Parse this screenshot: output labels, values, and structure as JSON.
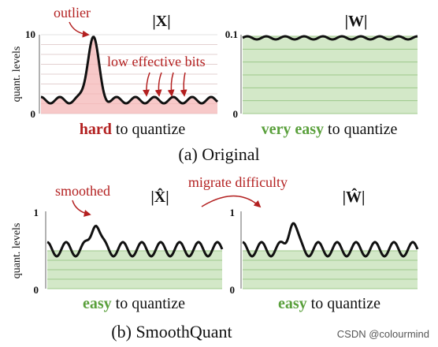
{
  "top": {
    "caption": "(a) Original",
    "y_axis_label": "quant. levels",
    "left": {
      "title": "|X|",
      "y_top_tick": "10",
      "y_bottom_tick": "0",
      "note_outlier": "outlier",
      "note_bits": "low effective bits",
      "subcaption_strong": "hard",
      "subcaption_rest": " to quantize"
    },
    "right": {
      "title": "|W|",
      "y_top_tick": "0.1",
      "y_bottom_tick": "0",
      "subcaption_strong": "very easy",
      "subcaption_rest": " to quantize"
    }
  },
  "bottom": {
    "caption": "(b) SmoothQuant",
    "y_axis_label": "quant. levels",
    "migrate_note": "migrate difficulty",
    "left": {
      "title": "|X̂|",
      "y_top_tick": "1",
      "y_bottom_tick": "0",
      "note_smoothed": "smoothed",
      "subcaption_strong": "easy",
      "subcaption_rest": " to quantize"
    },
    "right": {
      "title": "|Ŵ|",
      "y_top_tick": "1",
      "y_bottom_tick": "0",
      "subcaption_strong": "easy",
      "subcaption_rest": " to quantize"
    }
  },
  "watermark": "CSDN @colourmind",
  "colors": {
    "red_fill": "#f7c9c9",
    "red_line": "#e59a9a",
    "green_fill": "#d3e8c8",
    "green_line": "#9cc98a",
    "red_text": "#b32020",
    "green_text": "#5aa03c",
    "curve": "#111111"
  }
}
